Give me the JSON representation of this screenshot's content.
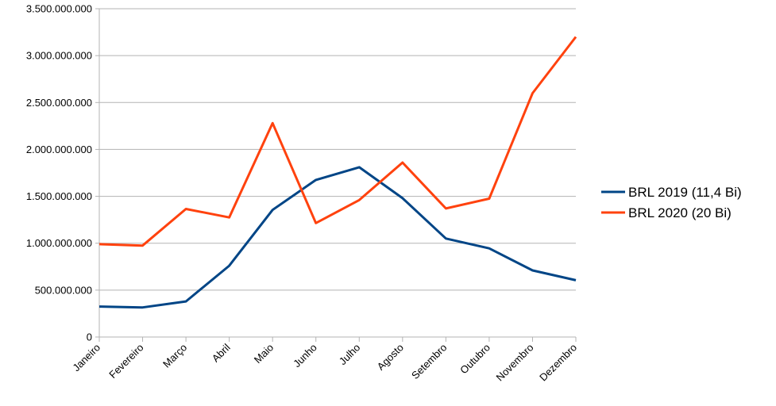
{
  "chart_data": {
    "type": "line",
    "categories": [
      "Janeiro",
      "Fevereiro",
      "Março",
      "Abril",
      "Maio",
      "Junho",
      "Julho",
      "Agosto",
      "Setembro",
      "Outubro",
      "Novembro",
      "Dezembro"
    ],
    "yticks": [
      "0",
      "500.000.000",
      "1.000.000.000",
      "1.500.000.000",
      "2.000.000.000",
      "2.500.000.000",
      "3.000.000.000",
      "3.500.000.000"
    ],
    "ylim": [
      0,
      3500000000
    ],
    "grid": true,
    "legend_position": "right",
    "series": [
      {
        "name": "BRL 2019 (11,4 Bi)",
        "color": "#004586",
        "values": [
          325000000,
          315000000,
          380000000,
          760000000,
          1355000000,
          1675000000,
          1810000000,
          1480000000,
          1050000000,
          945000000,
          710000000,
          605000000
        ]
      },
      {
        "name": "BRL 2020 (20 Bi)",
        "color": "#ff420e",
        "values": [
          990000000,
          975000000,
          1365000000,
          1275000000,
          2280000000,
          1215000000,
          1460000000,
          1860000000,
          1370000000,
          1475000000,
          2600000000,
          3200000000
        ]
      }
    ]
  }
}
